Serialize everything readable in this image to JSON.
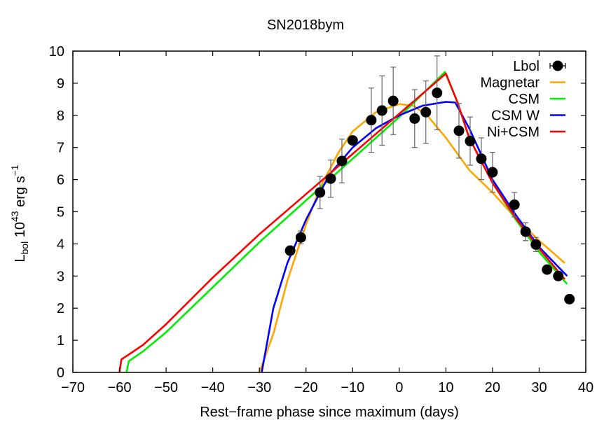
{
  "chart_data": {
    "type": "line",
    "title": "SN2018bym",
    "xlabel": "Rest−frame phase since maximum (days)",
    "ylabel": {
      "main": "L",
      "sub": "bol",
      "mid": " 10",
      "sup1": "43",
      "unit": " erg s",
      "sup2": "−1"
    },
    "xlim": [
      -70,
      40
    ],
    "ylim": [
      0,
      10
    ],
    "xticks": [
      -70,
      -60,
      -50,
      -40,
      -30,
      -20,
      -10,
      0,
      10,
      20,
      30,
      40
    ],
    "xtick_labels": [
      "−70",
      "−60",
      "−50",
      "−40",
      "−30",
      "−20",
      "−10",
      "0",
      "10",
      "20",
      "30",
      "40"
    ],
    "yticks": [
      0,
      1,
      2,
      3,
      4,
      5,
      6,
      7,
      8,
      9,
      10
    ],
    "ytick_labels": [
      "0",
      "1",
      "2",
      "3",
      "4",
      "5",
      "6",
      "7",
      "8",
      "9",
      "10"
    ],
    "grid": false,
    "legend_position": "top-right",
    "observed": {
      "name": "Lbol",
      "color": "#000000",
      "points": [
        {
          "x": -23.4,
          "y": 3.79,
          "err": 0.12
        },
        {
          "x": -21.1,
          "y": 4.2,
          "err": 0.2
        },
        {
          "x": -17.0,
          "y": 5.6,
          "err": 0.5
        },
        {
          "x": -14.7,
          "y": 6.03,
          "err": 0.58
        },
        {
          "x": -12.3,
          "y": 6.58,
          "err": 0.68
        },
        {
          "x": -10.0,
          "y": 7.22,
          "err": 0.0
        },
        {
          "x": -6.0,
          "y": 7.85,
          "err": 1.0
        },
        {
          "x": -3.7,
          "y": 8.15,
          "err": 1.08
        },
        {
          "x": -1.3,
          "y": 8.45,
          "err": 1.05
        },
        {
          "x": 3.3,
          "y": 7.9,
          "err": 0.9
        },
        {
          "x": 5.7,
          "y": 8.1,
          "err": 0.97
        },
        {
          "x": 8.1,
          "y": 8.7,
          "err": 1.15
        },
        {
          "x": 12.8,
          "y": 7.52,
          "err": 0.85
        },
        {
          "x": 15.2,
          "y": 7.2,
          "err": 0.75
        },
        {
          "x": 17.6,
          "y": 6.65,
          "err": 0.65
        },
        {
          "x": 20.0,
          "y": 6.23,
          "err": 0.62
        },
        {
          "x": 24.7,
          "y": 5.22,
          "err": 0.38
        },
        {
          "x": 27.1,
          "y": 4.38,
          "err": 0.28
        },
        {
          "x": 29.3,
          "y": 3.98,
          "err": 0.22
        },
        {
          "x": 31.7,
          "y": 3.2,
          "err": 0.0
        },
        {
          "x": 34.1,
          "y": 3.0,
          "err": 0.0
        },
        {
          "x": 36.5,
          "y": 2.28,
          "err": 0.0
        }
      ]
    },
    "series": [
      {
        "name": "Magnetar",
        "color": "#ffa500",
        "x": [
          -30,
          -27,
          -24,
          -20,
          -17,
          -13,
          -10,
          -5,
          0,
          3,
          6,
          10,
          15,
          20,
          25,
          30,
          35.5
        ],
        "y": [
          0,
          1.2,
          2.85,
          4.6,
          5.75,
          6.85,
          7.5,
          8.1,
          8.35,
          8.3,
          8.0,
          7.3,
          6.3,
          5.6,
          4.8,
          4.1,
          3.4
        ]
      },
      {
        "name": "CSM",
        "color": "#00ee00",
        "x": [
          -58.5,
          -58,
          -55,
          -50,
          -40,
          -30,
          -20,
          -10,
          0,
          9.8,
          12.5,
          15,
          20,
          25,
          30,
          36
        ],
        "y": [
          0,
          0.35,
          0.65,
          1.25,
          2.65,
          4.05,
          5.35,
          6.65,
          7.95,
          9.35,
          8.4,
          7.3,
          5.9,
          4.75,
          3.75,
          2.75
        ]
      },
      {
        "name": "CSM W",
        "color": "#0000ff",
        "x": [
          -29.5,
          -27,
          -24,
          -20,
          -15,
          -10,
          -5,
          0,
          5,
          10,
          12,
          15,
          20,
          25,
          30,
          36
        ],
        "y": [
          0,
          2.0,
          3.4,
          4.75,
          6.15,
          7.0,
          7.6,
          8.0,
          8.3,
          8.42,
          8.4,
          7.6,
          6.0,
          4.9,
          3.9,
          3.0
        ]
      },
      {
        "name": "Ni+CSM",
        "color": "#ff0000",
        "x": [
          -60,
          -59.6,
          -55,
          -50,
          -40,
          -30,
          -20,
          -10,
          0,
          10,
          12.5,
          15,
          20,
          25,
          30,
          35.5
        ],
        "y": [
          0,
          0.4,
          0.85,
          1.5,
          2.95,
          4.3,
          5.55,
          6.8,
          8.05,
          9.3,
          8.4,
          7.3,
          5.9,
          4.8,
          3.85,
          2.9
        ]
      }
    ],
    "legend": [
      "Lbol",
      "Magnetar",
      "CSM",
      "CSM W",
      "Ni+CSM"
    ]
  }
}
